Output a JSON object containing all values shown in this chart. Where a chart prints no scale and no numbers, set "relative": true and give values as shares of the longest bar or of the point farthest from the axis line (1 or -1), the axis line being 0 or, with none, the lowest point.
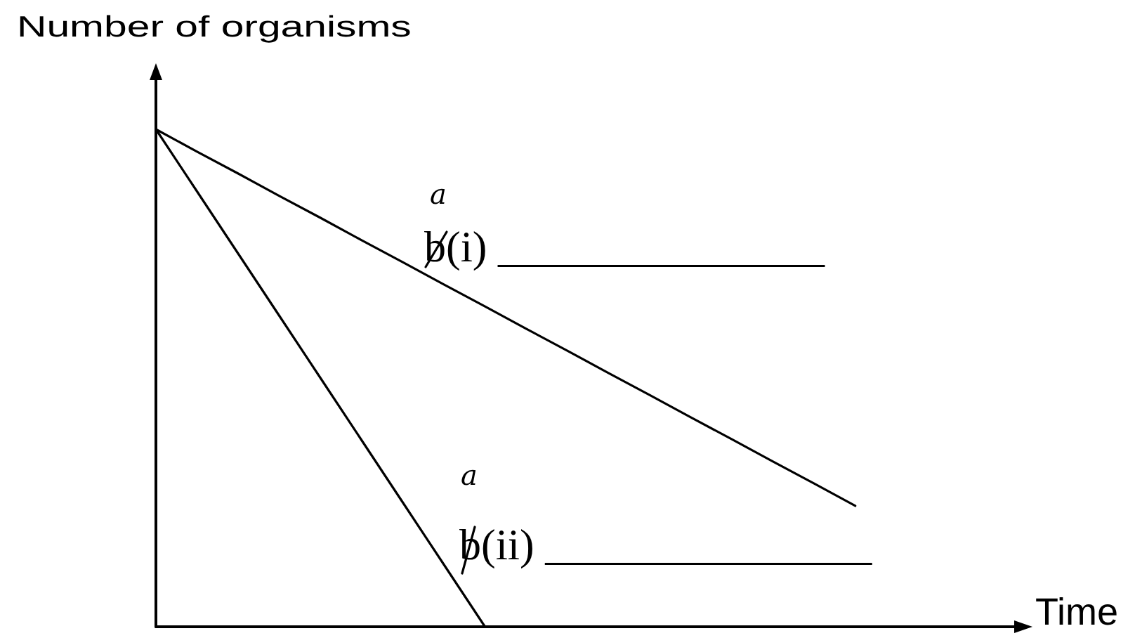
{
  "chart_data": {
    "type": "line",
    "xlabel": "Time",
    "ylabel": "Number of organisms",
    "annotations": [
      "a",
      "b(i) _______________",
      "a",
      "b(ii) _______________"
    ],
    "relative": true,
    "marker": "none",
    "categories": [
      null,
      null,
      null,
      null,
      null,
      null,
      null,
      null,
      null,
      null,
      null,
      null,
      null,
      null,
      null,
      null,
      null,
      null,
      null,
      null,
      null,
      null
    ],
    "series": [
      {
        "color": "#000000",
        "values": [
          1.0,
          0.955,
          0.911,
          0.866,
          0.822,
          0.777,
          0.733,
          0.688,
          0.644,
          0.599,
          0.555,
          0.51,
          0.466,
          0.421,
          0.377,
          0.332,
          0.288,
          0.243,
          null,
          null,
          null,
          null
        ]
      },
      {
        "color": "#000000",
        "values": [
          1.0,
          0.875,
          0.75,
          0.625,
          0.5,
          0.375,
          0.25,
          0.125,
          0.0,
          null,
          null,
          null,
          null,
          null,
          null,
          null,
          null,
          null,
          null,
          null,
          null,
          null
        ]
      }
    ]
  }
}
